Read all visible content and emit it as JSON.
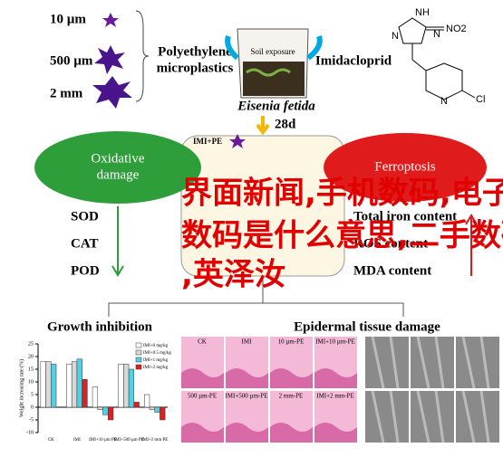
{
  "diagram": {
    "sizes": [
      "10 µm",
      "500 µm",
      "2 mm"
    ],
    "pe_label": [
      "Polyethylene",
      "microplastics"
    ],
    "soil_label": "Soil exposure",
    "imi_label": "Imidacloprid",
    "molecule": {
      "n1": "N",
      "n2": "N",
      "nh": "NH",
      "no2": "NO2",
      "n3": "N",
      "cl": "Cl"
    },
    "organism": "Eisenia fetida",
    "duration": "28d",
    "treatment": "IMI+PE",
    "oxidative": [
      "Oxidative",
      "damage"
    ],
    "ferroptosis": "Ferroptosis",
    "oxidative_items": [
      "SOD",
      "CAT",
      "POD"
    ],
    "ferroptosis_items": [
      "Total iron content",
      "ROS content",
      "MDA content"
    ],
    "overlay": [
      "界面新闻,手机数码,电子",
      "数码是什么意思,二手数码",
      ",英泽汝"
    ],
    "growth_title": "Growth inhibition",
    "tissue_title": "Epidermal tissue damage",
    "histology_labels": [
      "CK",
      "IMI",
      "10 µm-PE",
      "IMI+10 µm-PE",
      "500 µm-PE",
      "IMI+500 µm-PE",
      "2 mm-PE",
      "IMI+2 mm-PE"
    ]
  },
  "chart_data": {
    "type": "bar",
    "y_label": "Weight increasing rate (%)",
    "categories": [
      "CK",
      "IMI",
      "IMI+10 µm PE",
      "IMI+500 µm PE",
      "IMI+2 mm PE"
    ],
    "series": [
      {
        "name": "IMI+0 mg/kg",
        "color": "#ffffff",
        "values": [
          18,
          17,
          8,
          17,
          5
        ]
      },
      {
        "name": "IMI+0.5 mg/kg",
        "color": "#d9d9d9",
        "values": [
          18,
          18,
          -1,
          17,
          -1
        ]
      },
      {
        "name": "IMI+1 mg/kg",
        "color": "#4fd1e6",
        "values": [
          17,
          19,
          -3,
          15,
          -2
        ]
      },
      {
        "name": "IMI+2 mg/kg",
        "color": "#e02020",
        "values": [
          null,
          11,
          -5,
          2,
          -5
        ]
      }
    ],
    "ylim": [
      -10,
      25
    ],
    "yticks": [
      -10,
      -5,
      0,
      5,
      10,
      15,
      20,
      25
    ]
  }
}
